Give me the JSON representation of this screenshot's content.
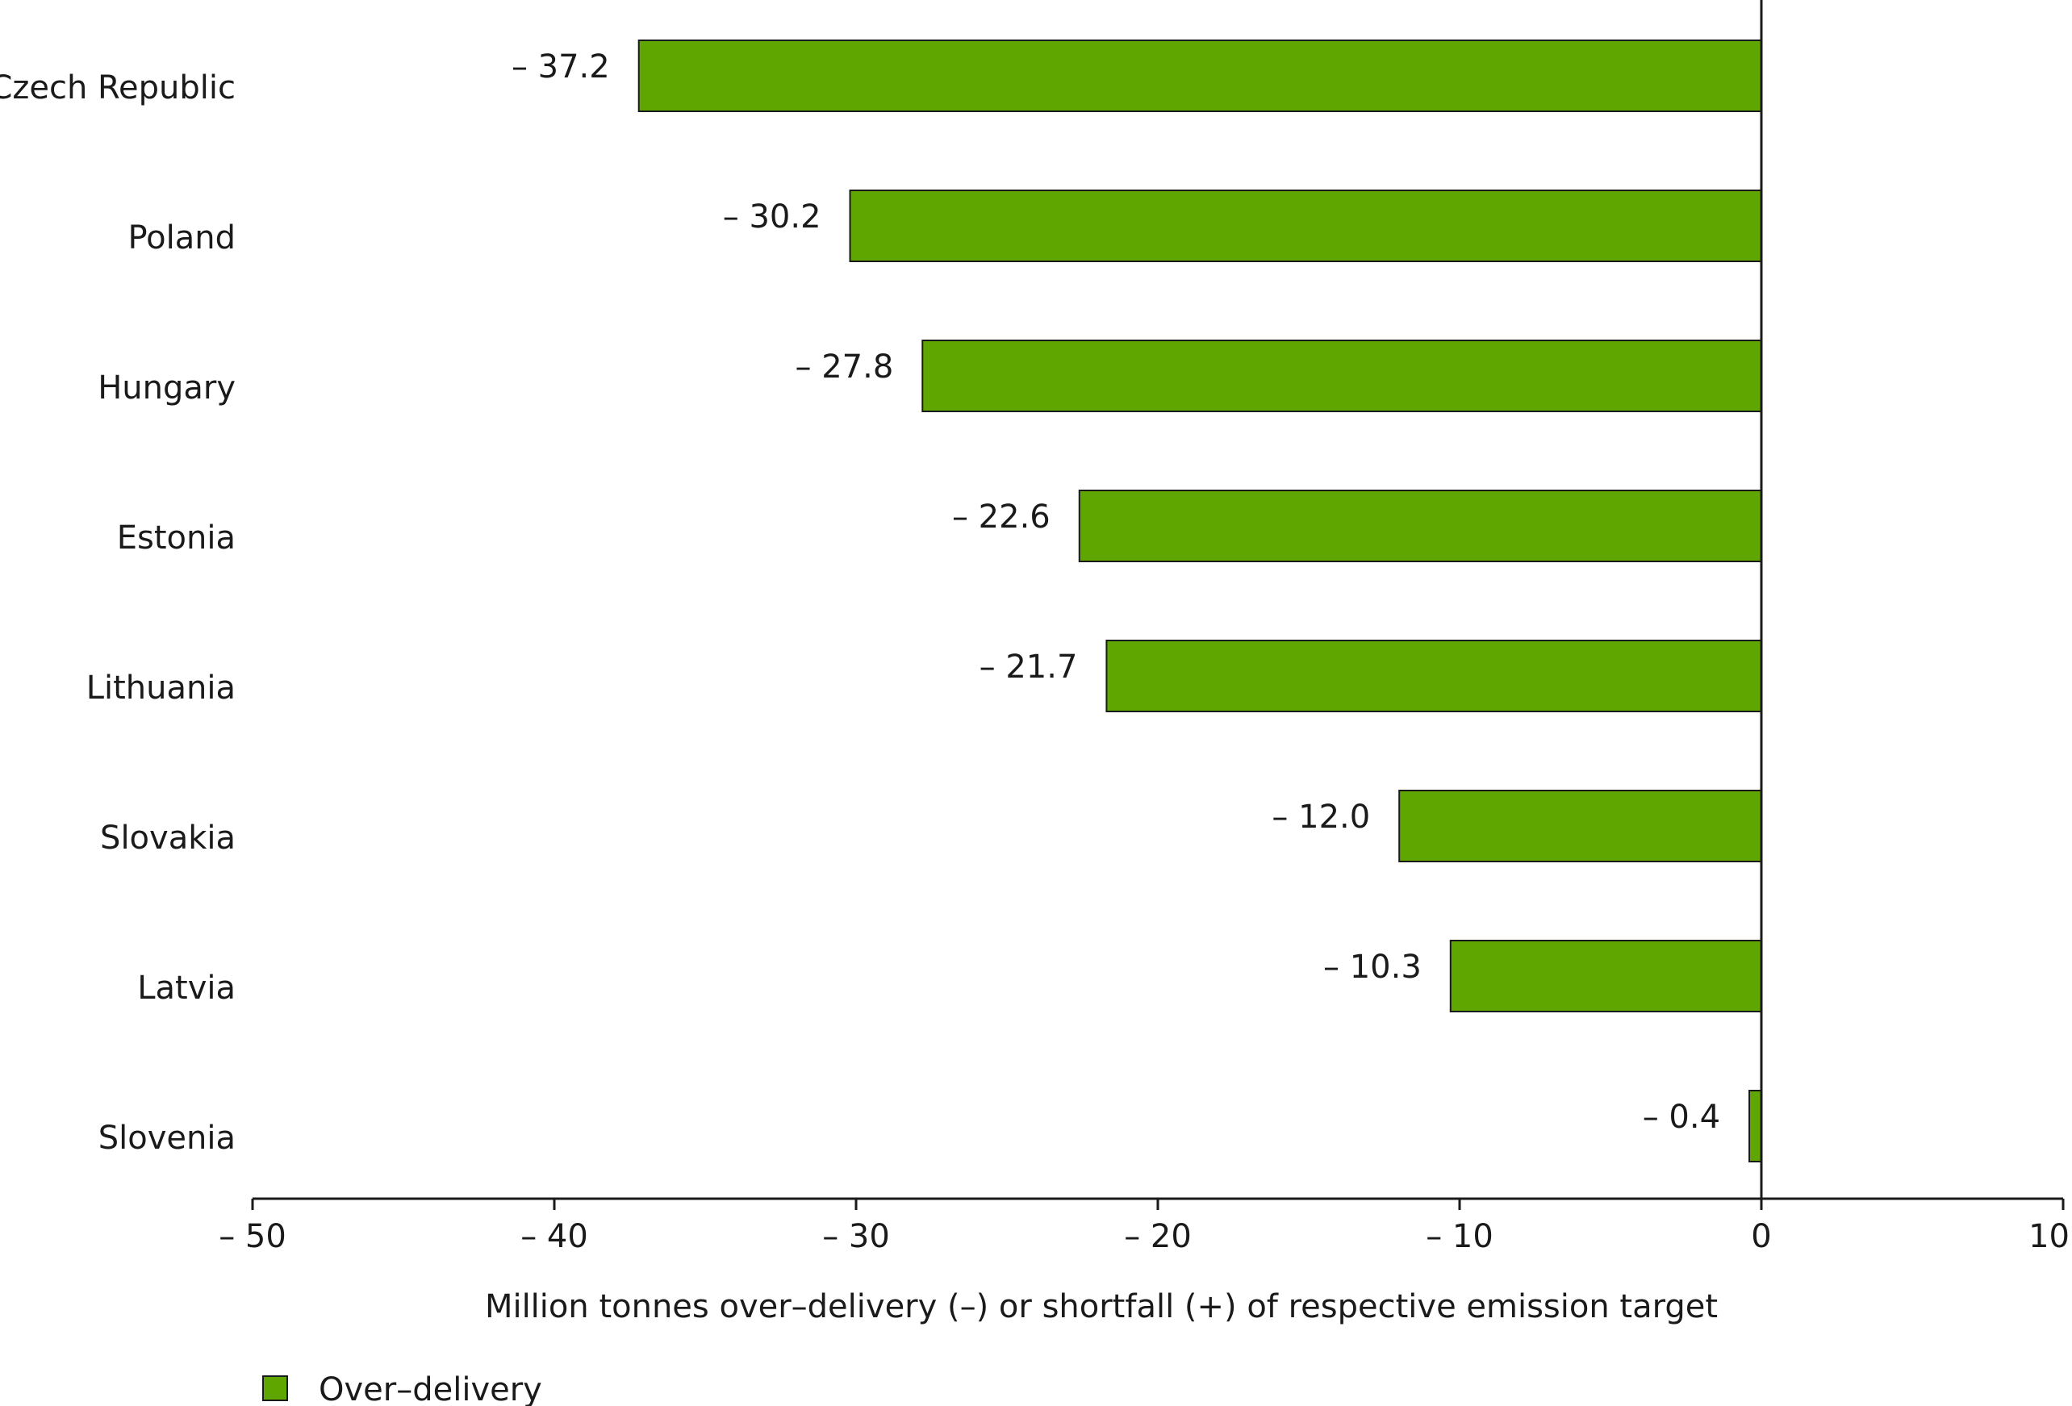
{
  "chart_data": {
    "type": "bar",
    "orientation": "horizontal",
    "categories": [
      "Czech Republic",
      "Poland",
      "Hungary",
      "Estonia",
      "Lithuania",
      "Slovakia",
      "Latvia",
      "Slovenia"
    ],
    "series": [
      {
        "name": "Over–delivery",
        "color": "#5fa700",
        "values": [
          -37.2,
          -30.2,
          -27.8,
          -22.6,
          -21.7,
          -12.0,
          -10.3,
          -0.4
        ],
        "value_labels": [
          "– 37.2",
          "– 30.2",
          "– 27.8",
          "– 22.6",
          "– 21.7",
          "– 12.0",
          "– 10.3",
          "– 0.4"
        ]
      }
    ],
    "xlim": [
      -50,
      10
    ],
    "xticks": [
      -50,
      -40,
      -30,
      -20,
      -10,
      0,
      10
    ],
    "xtick_labels": [
      "– 50",
      "– 40",
      "– 30",
      "– 20",
      "– 10",
      "0",
      "10"
    ],
    "xlabel": "Million tonnes over–delivery (–) or shortfall (+) of respective emission target",
    "ylabel": "",
    "title": "",
    "grid": false,
    "legend": {
      "position": "bottom-left",
      "entries": [
        "Over–delivery"
      ]
    },
    "colors": {
      "bar_fill": "#5fa700",
      "bar_stroke": "#1a1a1a",
      "axis": "#1a1a1a"
    }
  }
}
